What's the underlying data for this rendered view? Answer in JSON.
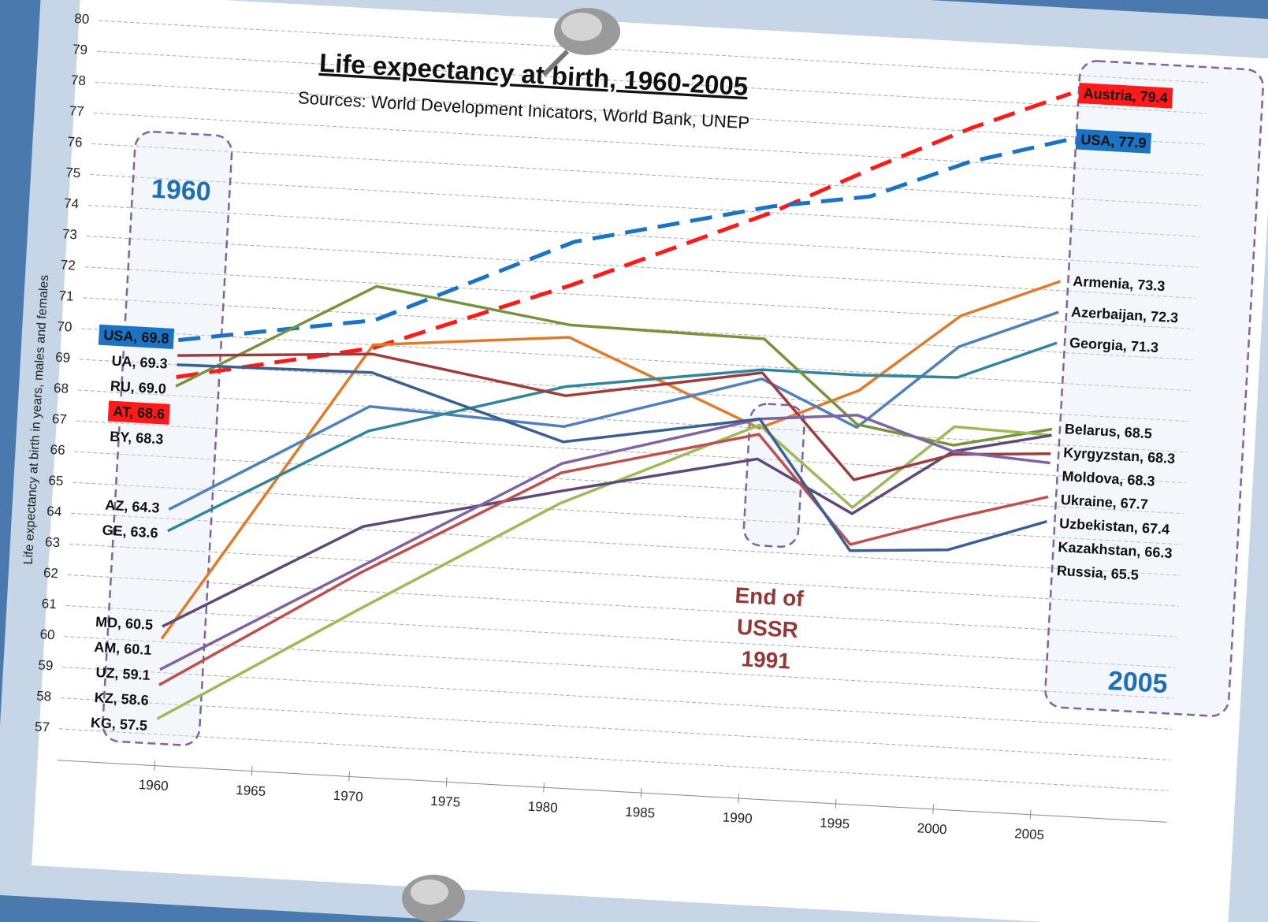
{
  "chart_data": {
    "type": "line",
    "title": "Life expectancy at birth, 1960-2005",
    "subtitle": "Sources: World Development Inicators, World Bank, UNEP",
    "y_label": "Life expectancy at birth in years, males and females",
    "start_marker": "1960",
    "end_marker": "2005",
    "annotation": [
      "End of",
      "USSR",
      "1991"
    ],
    "annotation_color": "#953735",
    "marker_color": "#1f6fb5",
    "x": [
      1960,
      1970,
      1980,
      1990,
      1995,
      2000,
      2005
    ],
    "xlim": [
      1955,
      2012
    ],
    "xticks": [
      1960,
      1965,
      1970,
      1975,
      1980,
      1985,
      1990,
      1995,
      2000,
      2005
    ],
    "ylim": [
      57,
      80
    ],
    "yticks": [
      57,
      58,
      59,
      60,
      61,
      62,
      63,
      64,
      65,
      66,
      67,
      68,
      69,
      70,
      71,
      72,
      73,
      74,
      75,
      76,
      77,
      78,
      79,
      80
    ],
    "grid": true,
    "series": [
      {
        "color": "#ff1a1a",
        "dashed": true,
        "values": [
          68.6,
          69.9,
          72.3,
          75.0,
          76.6,
          78.1,
          79.4
        ],
        "value_labels": [
          "AT, 68.6",
          null,
          null,
          null,
          null,
          null,
          "Austria, 79.4"
        ]
      },
      {
        "color": "#1a73c4",
        "dashed": true,
        "values": [
          69.8,
          70.8,
          73.7,
          75.2,
          75.7,
          77.0,
          77.9
        ],
        "value_labels": [
          "USA, 69.8",
          null,
          null,
          null,
          null,
          null,
          "USA, 77.9"
        ]
      },
      {
        "color": "#e07b29",
        "dashed": false,
        "values": [
          60.1,
          70.0,
          70.6,
          68.0,
          69.4,
          72.0,
          73.3
        ],
        "value_labels": [
          "AM, 60.1",
          null,
          null,
          null,
          null,
          null,
          "Armenia, 73.3"
        ]
      },
      {
        "color": "#4f81bd",
        "dashed": false,
        "values": [
          64.3,
          68.0,
          67.7,
          69.6,
          68.2,
          71.0,
          72.3
        ],
        "value_labels": [
          "AZ, 64.3",
          null,
          null,
          null,
          null,
          null,
          "Azerbaijan, 72.3"
        ]
      },
      {
        "color": "#31859c",
        "dashed": false,
        "values": [
          63.6,
          67.2,
          69.0,
          69.9,
          69.9,
          70.0,
          71.3
        ],
        "value_labels": [
          "GE, 63.6",
          null,
          null,
          null,
          null,
          null,
          "Georgia, 71.3"
        ]
      },
      {
        "color": "#77933c",
        "dashed": false,
        "values": [
          68.3,
          71.9,
          71.0,
          70.9,
          68.3,
          67.8,
          68.5
        ],
        "value_labels": [
          "BY, 68.3",
          null,
          null,
          null,
          null,
          null,
          "Belarus, 68.5"
        ]
      },
      {
        "color": "#9bbb59",
        "dashed": false,
        "values": [
          57.5,
          61.4,
          65.2,
          68.1,
          65.6,
          68.4,
          68.3
        ],
        "value_labels": [
          "KG, 57.5",
          null,
          null,
          null,
          null,
          null,
          "Kyrgyzstan, 68.3"
        ]
      },
      {
        "color": "#5f497a",
        "dashed": false,
        "values": [
          60.5,
          64.1,
          65.6,
          67.0,
          65.4,
          67.6,
          68.3
        ],
        "value_labels": [
          "MD, 60.5",
          null,
          null,
          null,
          null,
          null,
          "Moldova, 68.3"
        ]
      },
      {
        "color": "#9e3d3b",
        "dashed": false,
        "values": [
          69.3,
          69.7,
          68.7,
          69.8,
          66.5,
          67.5,
          67.7
        ],
        "value_labels": [
          "UA, 69.3",
          null,
          null,
          null,
          null,
          null,
          "Ukraine, 67.7"
        ]
      },
      {
        "color": "#8064a2",
        "dashed": false,
        "values": [
          59.1,
          62.8,
          66.5,
          68.3,
          68.6,
          67.6,
          67.4
        ],
        "value_labels": [
          "UZ, 59.1",
          null,
          null,
          null,
          null,
          null,
          "Uzbekistan, 67.4"
        ]
      },
      {
        "color": "#c0504d",
        "dashed": false,
        "values": [
          58.6,
          62.6,
          66.2,
          67.8,
          64.4,
          65.4,
          66.3
        ],
        "value_labels": [
          "KZ, 58.6",
          null,
          null,
          null,
          null,
          null,
          "Kazakhstan, 66.3"
        ]
      },
      {
        "color": "#3c5f91",
        "dashed": false,
        "values": [
          69.0,
          69.1,
          67.2,
          68.3,
          64.2,
          64.4,
          65.5
        ],
        "value_labels": [
          "RU, 69.0",
          null,
          null,
          null,
          null,
          null,
          "Russia, 65.5"
        ]
      }
    ]
  }
}
